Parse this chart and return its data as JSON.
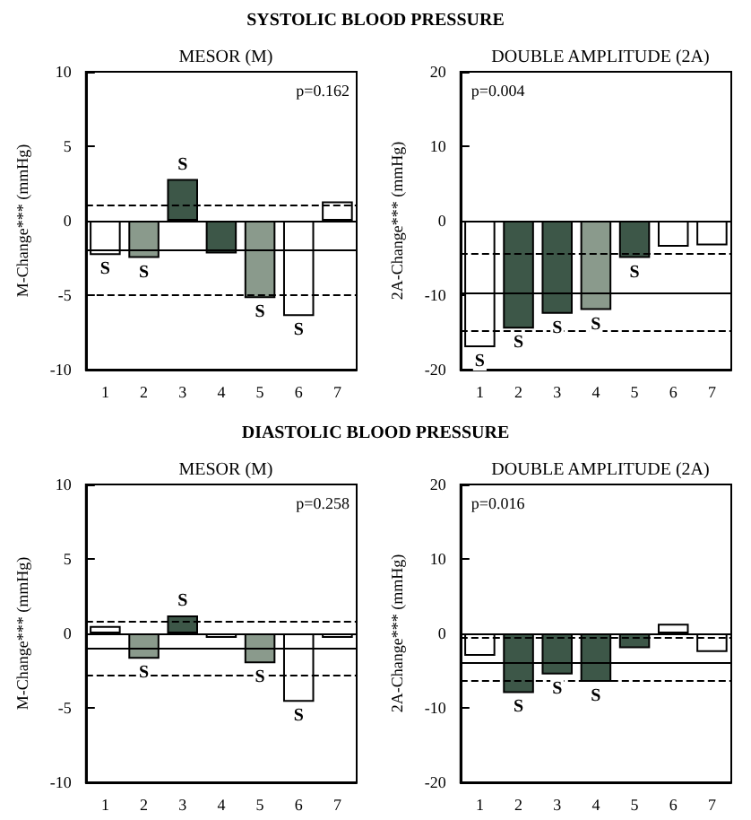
{
  "chart_data": [
    {
      "type": "bar",
      "title": "SYSTOLIC BLOOD PRESSURE",
      "subtitle": "MESOR (M)",
      "ylabel": "M-Change*** (mmHg)",
      "categories": [
        "1",
        "2",
        "3",
        "4",
        "5",
        "6",
        "7"
      ],
      "values": [
        -2.3,
        -2.5,
        2.8,
        -2.2,
        -5.2,
        -6.4,
        1.3
      ],
      "colors": [
        "#ffffff",
        "#8a9a8c",
        "#3d5748",
        "#3d5748",
        "#8a9a8c",
        "#ffffff",
        "#ffffff"
      ],
      "ylim": [
        -10,
        10
      ],
      "yticks": [
        -10,
        -5,
        0,
        5,
        10
      ],
      "ref_lines": [
        {
          "axis": "y",
          "value": -2,
          "line_style": "solid"
        },
        {
          "axis": "y",
          "value": 1.1,
          "line_style": "dashed"
        },
        {
          "axis": "y",
          "value": -5,
          "line_style": "dashed"
        }
      ],
      "annotations": [
        "p=0.162",
        {
          "text": "S",
          "x": "1",
          "y": -2.3
        },
        {
          "text": "S",
          "x": "2",
          "y": -2.5
        },
        {
          "text": "S",
          "x": "3",
          "y": 2.8
        },
        {
          "text": "S",
          "x": "5",
          "y": -5.2
        },
        {
          "text": "S",
          "x": "6",
          "y": -6.4
        }
      ]
    },
    {
      "type": "bar",
      "subtitle": "DOUBLE AMPLITUDE (2A)",
      "ylabel": "2A-Change*** (mmHg)",
      "categories": [
        "1",
        "2",
        "3",
        "4",
        "5",
        "6",
        "7"
      ],
      "values": [
        -17,
        -14.5,
        -12.5,
        -12,
        -5,
        -3.5,
        -3.3
      ],
      "colors": [
        "#ffffff",
        "#3d5748",
        "#3d5748",
        "#8a9a8c",
        "#3d5748",
        "#ffffff",
        "#ffffff"
      ],
      "ylim": [
        -20,
        20
      ],
      "yticks": [
        -20,
        -10,
        0,
        10,
        20
      ],
      "ref_lines": [
        {
          "axis": "y",
          "value": -9.7,
          "line_style": "solid"
        },
        {
          "axis": "y",
          "value": -4.5,
          "line_style": "dashed"
        },
        {
          "axis": "y",
          "value": -14.8,
          "line_style": "dashed"
        }
      ],
      "annotations": [
        "p=0.004",
        {
          "text": "S",
          "x": "1",
          "y": -17
        },
        {
          "text": "S",
          "x": "2",
          "y": -14.5
        },
        {
          "text": "S",
          "x": "3",
          "y": -12.5
        },
        {
          "text": "S",
          "x": "4",
          "y": -12
        },
        {
          "text": "S",
          "x": "5",
          "y": -5
        }
      ]
    },
    {
      "type": "bar",
      "title": "DIASTOLIC BLOOD PRESSURE",
      "subtitle": "MESOR (M)",
      "ylabel": "M-Change*** (mmHg)",
      "categories": [
        "1",
        "2",
        "3",
        "4",
        "5",
        "6",
        "7"
      ],
      "values": [
        0.5,
        -1.7,
        1.2,
        -0.3,
        -2,
        -4.6,
        -0.3
      ],
      "colors": [
        "#ffffff",
        "#8a9a8c",
        "#3d5748",
        "#ffffff",
        "#8a9a8c",
        "#ffffff",
        "#ffffff"
      ],
      "ylim": [
        -10,
        10
      ],
      "yticks": [
        -10,
        -5,
        0,
        5,
        10
      ],
      "ref_lines": [
        {
          "axis": "y",
          "value": -1,
          "line_style": "solid"
        },
        {
          "axis": "y",
          "value": 0.8,
          "line_style": "dashed"
        },
        {
          "axis": "y",
          "value": -2.8,
          "line_style": "dashed"
        }
      ],
      "annotations": [
        "p=0.258",
        {
          "text": "S",
          "x": "2",
          "y": -1.7
        },
        {
          "text": "S",
          "x": "3",
          "y": 1.2
        },
        {
          "text": "S",
          "x": "5",
          "y": -2
        },
        {
          "text": "S",
          "x": "6",
          "y": -4.6
        }
      ]
    },
    {
      "type": "bar",
      "subtitle": "DOUBLE AMPLITUDE (2A)",
      "ylabel": "2A-Change*** (mmHg)",
      "categories": [
        "1",
        "2",
        "3",
        "4",
        "5",
        "6",
        "7"
      ],
      "values": [
        -3,
        -8,
        -5.5,
        -6.5,
        -2,
        1.3,
        -2.5
      ],
      "colors": [
        "#ffffff",
        "#3d5748",
        "#3d5748",
        "#3d5748",
        "#3d5748",
        "#ffffff",
        "#ffffff"
      ],
      "ylim": [
        -20,
        20
      ],
      "yticks": [
        -20,
        -10,
        0,
        10,
        20
      ],
      "ref_lines": [
        {
          "axis": "y",
          "value": -3.8,
          "line_style": "solid"
        },
        {
          "axis": "y",
          "value": -0.5,
          "line_style": "dashed"
        },
        {
          "axis": "y",
          "value": -6.3,
          "line_style": "dashed"
        }
      ],
      "annotations": [
        "p=0.016",
        {
          "text": "S",
          "x": "2",
          "y": -8
        },
        {
          "text": "S",
          "x": "3",
          "y": -5.5
        },
        {
          "text": "S",
          "x": "4",
          "y": -6.5
        }
      ]
    }
  ]
}
